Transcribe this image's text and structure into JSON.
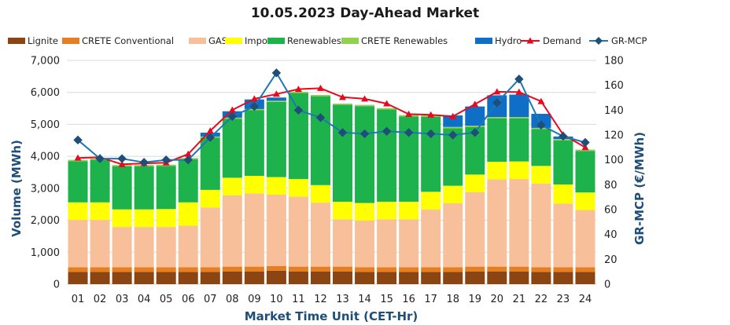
{
  "chart_data": {
    "type": "bar",
    "subtype": "stacked bar + line (dual axis)",
    "title": "10.05.2023  Day-Ahead Market",
    "xlabel": "Market Time Unit (CET-Hr)",
    "ylabel": "Volume (MWh)",
    "y2label": "GR-MCP (€/MWh)",
    "ylim": [
      0,
      7000
    ],
    "y2lim": [
      0,
      180
    ],
    "yticks": [
      "0",
      "1,000",
      "2,000",
      "3,000",
      "4,000",
      "5,000",
      "6,000",
      "7,000"
    ],
    "y2ticks": [
      "0",
      "20",
      "40",
      "60",
      "80",
      "100",
      "120",
      "140",
      "160",
      "180"
    ],
    "grid": true,
    "legend_position": "top",
    "categories": [
      "01",
      "02",
      "03",
      "04",
      "05",
      "06",
      "07",
      "08",
      "09",
      "10",
      "11",
      "12",
      "13",
      "14",
      "15",
      "16",
      "17",
      "18",
      "19",
      "20",
      "21",
      "22",
      "23",
      "24"
    ],
    "stacked_series": [
      {
        "name": "Lignite",
        "color": "#8B4513",
        "values": [
          380,
          380,
          380,
          380,
          380,
          380,
          380,
          400,
          400,
          420,
          400,
          400,
          400,
          380,
          380,
          380,
          380,
          380,
          400,
          400,
          400,
          380,
          380,
          380
        ]
      },
      {
        "name": "CRETE Conventional",
        "color": "#E67E22",
        "values": [
          150,
          150,
          150,
          150,
          150,
          150,
          150,
          150,
          150,
          150,
          150,
          150,
          150,
          150,
          150,
          150,
          150,
          150,
          150,
          150,
          150,
          150,
          150,
          150
        ]
      },
      {
        "name": "GAS",
        "color": "#F8C09A",
        "values": [
          1480,
          1480,
          1260,
          1260,
          1260,
          1300,
          1870,
          2230,
          2290,
          2230,
          2190,
          2000,
          1480,
          1460,
          1500,
          1500,
          1810,
          2000,
          2330,
          2730,
          2740,
          2620,
          1990,
          1790
        ]
      },
      {
        "name": "Imports",
        "color": "#FFFF00",
        "values": [
          550,
          550,
          550,
          550,
          560,
          730,
          550,
          550,
          550,
          550,
          550,
          550,
          550,
          550,
          550,
          550,
          550,
          550,
          550,
          550,
          550,
          550,
          600,
          550
        ]
      },
      {
        "name": "Renewables",
        "color": "#1DB24B",
        "values": [
          1290,
          1330,
          1350,
          1350,
          1350,
          1350,
          1630,
          1840,
          2050,
          2350,
          2690,
          2780,
          3030,
          3030,
          2890,
          2670,
          2350,
          1800,
          1490,
          1360,
          1350,
          1150,
          1380,
          1300
        ]
      },
      {
        "name": "CRETE Renewables",
        "color": "#92D050",
        "values": [
          40,
          40,
          40,
          40,
          40,
          40,
          40,
          40,
          40,
          40,
          40,
          40,
          40,
          40,
          40,
          40,
          40,
          40,
          40,
          40,
          40,
          40,
          40,
          40
        ]
      },
      {
        "name": "Hydro",
        "color": "#0F6FC6",
        "values": [
          0,
          0,
          0,
          0,
          0,
          0,
          120,
          200,
          300,
          100,
          0,
          0,
          0,
          0,
          0,
          0,
          0,
          360,
          600,
          680,
          700,
          440,
          80,
          0
        ]
      }
    ],
    "line_series": [
      {
        "name": "Demand",
        "axis": "y",
        "color": "#E8091E",
        "marker": "triangle",
        "values": [
          3950,
          3970,
          3750,
          3780,
          3800,
          4070,
          4800,
          5450,
          5800,
          5950,
          6100,
          6130,
          5850,
          5800,
          5650,
          5320,
          5300,
          5250,
          5630,
          6020,
          6010,
          5720,
          4680,
          4280
        ]
      },
      {
        "name": "GR-MCP",
        "axis": "y2",
        "color": "#1F77B4",
        "marker": "diamond",
        "values": [
          116,
          101,
          101,
          98,
          100,
          100,
          118,
          135,
          143,
          170,
          140,
          134,
          122,
          121,
          123,
          122,
          121,
          120,
          122,
          146,
          165,
          128,
          119,
          114
        ]
      }
    ]
  }
}
